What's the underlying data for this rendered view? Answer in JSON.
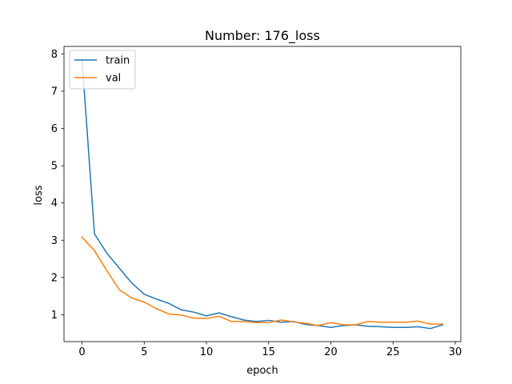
{
  "chart_data": {
    "type": "line",
    "title": "Number: 176_loss",
    "xlabel": "epoch",
    "ylabel": "loss",
    "xlim": [
      -1.45,
      30.45
    ],
    "ylim": [
      0.28,
      8.2
    ],
    "xticks": [
      0,
      5,
      10,
      15,
      20,
      25,
      30
    ],
    "yticks": [
      1,
      2,
      3,
      4,
      5,
      6,
      7,
      8
    ],
    "grid": false,
    "legend_position": "top-left",
    "x": [
      0,
      1,
      2,
      3,
      4,
      5,
      6,
      7,
      8,
      9,
      10,
      11,
      12,
      13,
      14,
      15,
      16,
      17,
      18,
      19,
      20,
      21,
      22,
      23,
      24,
      25,
      26,
      27,
      28,
      29
    ],
    "series": [
      {
        "name": "train",
        "color": "#1f77b4",
        "values": [
          7.85,
          3.17,
          2.65,
          2.25,
          1.85,
          1.55,
          1.42,
          1.3,
          1.13,
          1.07,
          0.97,
          1.05,
          0.95,
          0.86,
          0.82,
          0.85,
          0.8,
          0.82,
          0.74,
          0.71,
          0.66,
          0.71,
          0.73,
          0.69,
          0.68,
          0.66,
          0.66,
          0.68,
          0.63,
          0.73
        ]
      },
      {
        "name": "val",
        "color": "#ff7f0e",
        "values": [
          3.08,
          2.72,
          2.18,
          1.67,
          1.45,
          1.34,
          1.16,
          1.02,
          0.99,
          0.91,
          0.9,
          0.96,
          0.82,
          0.82,
          0.79,
          0.79,
          0.86,
          0.81,
          0.77,
          0.71,
          0.79,
          0.73,
          0.73,
          0.82,
          0.8,
          0.8,
          0.8,
          0.83,
          0.75,
          0.75
        ]
      }
    ]
  }
}
